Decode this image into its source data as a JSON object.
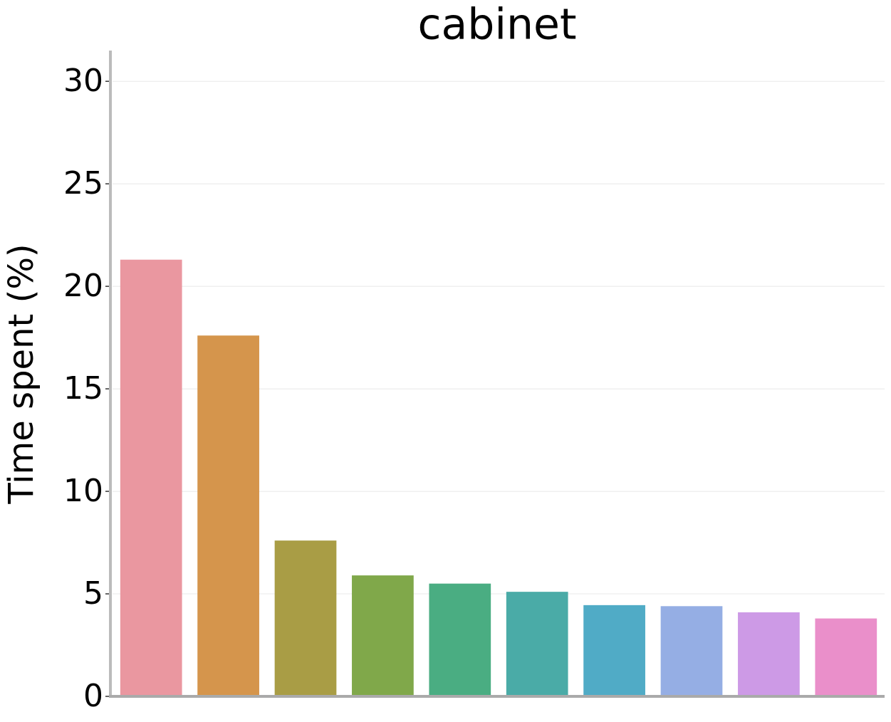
{
  "chart_data": {
    "type": "bar",
    "title": "cabinet",
    "y_label": "Time spent (%)",
    "categories": [
      null,
      null,
      null,
      null,
      null,
      null,
      null,
      null,
      null,
      null
    ],
    "values": [
      21.3,
      17.6,
      7.6,
      5.9,
      5.5,
      5.1,
      4.45,
      4.4,
      4.1,
      3.8
    ],
    "colors": [
      "#ea97a0",
      "#d5954c",
      "#a99d45",
      "#80a84a",
      "#4aad82",
      "#4aaba7",
      "#50abc6",
      "#95aee4",
      "#cd9ae6",
      "#ea8fca"
    ],
    "ylim": [
      0,
      31.5
    ],
    "yticks": [
      0,
      5,
      10,
      15,
      20,
      25,
      30
    ],
    "grid": true
  }
}
